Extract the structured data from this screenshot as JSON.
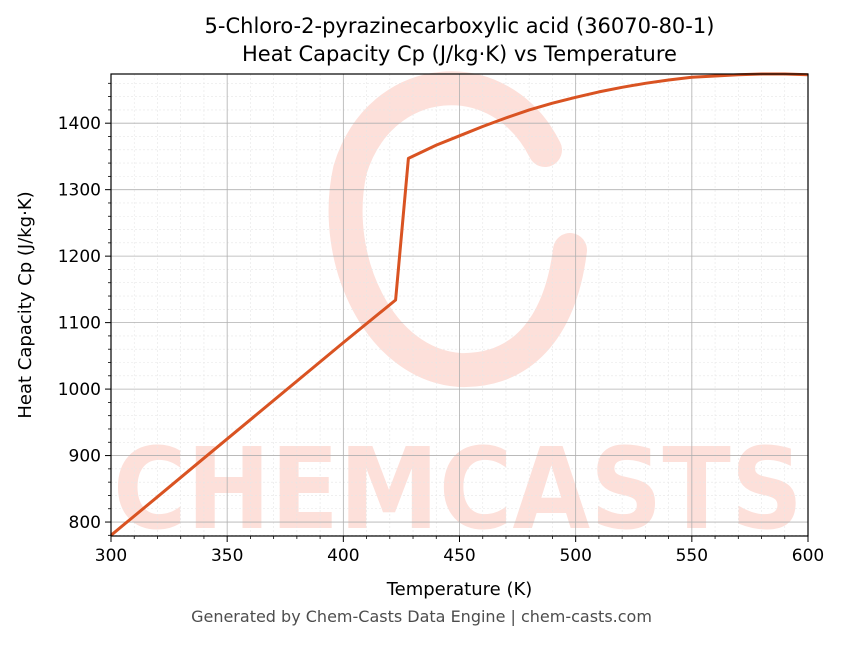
{
  "chart_data": {
    "type": "line",
    "title_line1": "5-Chloro-2-pyrazinecarboxylic acid (36070-80-1)",
    "title_line2": "Heat Capacity Cp (J/kg·K) vs Temperature",
    "xlabel": "Temperature (K)",
    "ylabel": "Heat Capacity Cp (J/kg·K)",
    "xlim": [
      300,
      600
    ],
    "ylim": [
      779,
      1474
    ],
    "x_ticks": [
      300,
      350,
      400,
      450,
      500,
      550,
      600
    ],
    "y_ticks": [
      800,
      900,
      1000,
      1100,
      1200,
      1300,
      1400
    ],
    "grid": true,
    "line_color": "#d95322",
    "series": [
      {
        "x": [
          300,
          320,
          340,
          360,
          380,
          400,
          422.5,
          428,
          440,
          450,
          460,
          470,
          480,
          490,
          500,
          510,
          520,
          530,
          540,
          550,
          560,
          570,
          580,
          590,
          600
        ],
        "y": [
          780,
          838,
          896,
          954,
          1012,
          1070,
          1134,
          1347,
          1367,
          1381,
          1395,
          1408,
          1420,
          1430,
          1439,
          1447,
          1454,
          1460,
          1465,
          1469,
          1471,
          1473,
          1474,
          1474,
          1473
        ]
      }
    ]
  },
  "watermark": {
    "text": "CHEMCASTS",
    "color": "#fde0da"
  },
  "footer": {
    "text": "Generated by Chem-Casts Data Engine | chem-casts.com"
  }
}
